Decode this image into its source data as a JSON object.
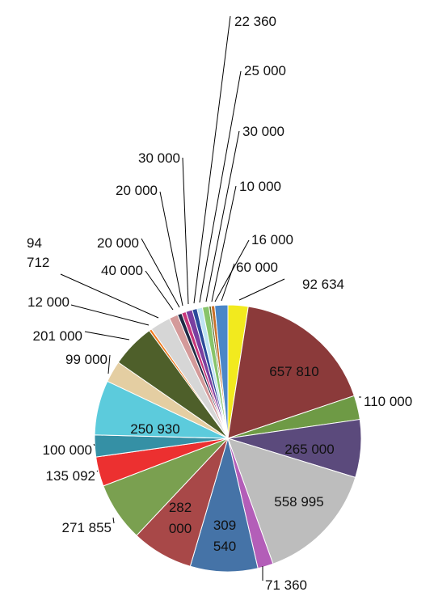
{
  "chart_data": {
    "type": "pie",
    "title": "",
    "legend": "none",
    "start_angle_deg": 0,
    "direction": "clockwise",
    "slices": [
      {
        "label": "92 634",
        "value": 92634,
        "color": "#f2ea1e"
      },
      {
        "label": "657 810",
        "value": 657810,
        "color": "#8b3a3a"
      },
      {
        "label": "110 000",
        "value": 110000,
        "color": "#6e9a45"
      },
      {
        "label": "265 000",
        "value": 265000,
        "color": "#5b4a7c"
      },
      {
        "label": "558 995",
        "value": 558995,
        "color": "#bdbdbd"
      },
      {
        "label": "71 360",
        "value": 71360,
        "color": "#b35eb8"
      },
      {
        "label": "309 540",
        "value": 309540,
        "color": "#4573a7"
      },
      {
        "label": "282 000",
        "value": 282000,
        "color": "#a84848"
      },
      {
        "label": "271 855",
        "value": 271855,
        "color": "#7aa050"
      },
      {
        "label": "135 092",
        "value": 135092,
        "color": "#ec3030"
      },
      {
        "label": "100 000",
        "value": 100000,
        "color": "#3590a5"
      },
      {
        "label": "250 930",
        "value": 250930,
        "color": "#5ccbdc"
      },
      {
        "label": "99 000",
        "value": 99000,
        "color": "#e4cea2"
      },
      {
        "label": "201 000",
        "value": 201000,
        "color": "#4e5f2a"
      },
      {
        "label": "12 000",
        "value": 12000,
        "color": "#f07a1e"
      },
      {
        "label": "94 712",
        "value": 94712,
        "color": "#d6d6d6"
      },
      {
        "label": "40 000",
        "value": 40000,
        "color": "#d49a9a"
      },
      {
        "label": "20 000",
        "value": 20000,
        "color": "#1f2a45"
      },
      {
        "label": "20 000",
        "value": 20000,
        "color": "#c8367a"
      },
      {
        "label": "30 000",
        "value": 30000,
        "color": "#7a3fa0"
      },
      {
        "label": "22 360",
        "value": 22360,
        "color": "#2b4a9a"
      },
      {
        "label": "25 000",
        "value": 25000,
        "color": "#bfe3f2"
      },
      {
        "label": "30 000",
        "value": 30000,
        "color": "#88c46a"
      },
      {
        "label": "10 000",
        "value": 10000,
        "color": "#5a6a2a"
      },
      {
        "label": "16 000",
        "value": 16000,
        "color": "#c8702a"
      },
      {
        "label": "60 000",
        "value": 60000,
        "color": "#4a86c8"
      }
    ]
  }
}
